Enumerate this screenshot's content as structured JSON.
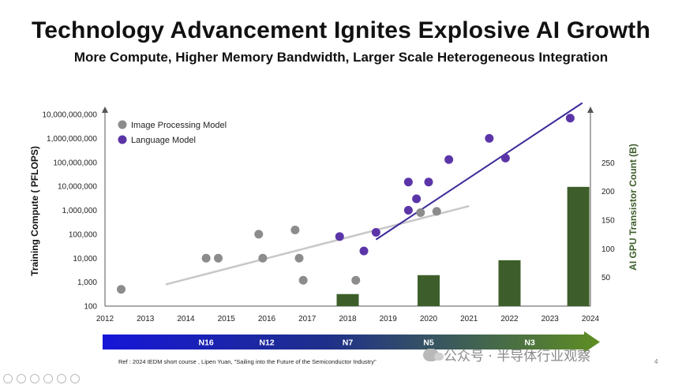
{
  "header": {
    "title": "Technology Advancement Ignites Explosive AI Growth",
    "subtitle": "More Compute, Higher Memory Bandwidth, Larger Scale Heterogeneous Integration"
  },
  "footer": {
    "reference": "Ref : 2024 IEDM short course , Lipen Yuan, \"Sailing into the Future of the Semiconductor Industry\"",
    "page_number": "4",
    "watermark": "公众号 · 半导体行业观察"
  },
  "colors": {
    "image_model": "#8c8c8c",
    "language_model": "#5b35a8",
    "trend_image": "#c8c8c8",
    "trend_language": "#3a2a9a",
    "bar": "#3d5e2a",
    "ylabel_right": "#3d5e2a",
    "arrow_start": "#1616d8",
    "arrow_end": "#5e8e22"
  },
  "chart_data": {
    "type": "scatter",
    "title": "",
    "xlabel": "",
    "ylabel": "Training Compute ( PFLOPS)",
    "ylabel_right": "AI GPU Transistor Count (B)",
    "x_ticks": [
      "2012",
      "2013",
      "2014",
      "2015",
      "2016",
      "2017",
      "2018",
      "2019",
      "2020",
      "2021",
      "2022",
      "2023",
      "2024"
    ],
    "y_log": true,
    "y_ticks": [
      "100",
      "1,000",
      "10,000",
      "100,000",
      "1,000,000",
      "10,000,000",
      "100,000,000",
      "1,000,000,000",
      "10,000,000,000"
    ],
    "y_right_ticks": [
      "50",
      "100",
      "150",
      "200",
      "250"
    ],
    "xlim": [
      2012,
      2024
    ],
    "ylim_log10": [
      2,
      10
    ],
    "ylim_right": [
      0,
      300
    ],
    "legend": {
      "placement": "top-left",
      "entries": [
        "Image Processing Model",
        "Language Model"
      ]
    },
    "series": [
      {
        "name": "Image Processing Model",
        "points": [
          [
            2012.4,
            500
          ],
          [
            2014.5,
            10000
          ],
          [
            2014.8,
            10000
          ],
          [
            2015.8,
            100000
          ],
          [
            2015.9,
            10000
          ],
          [
            2016.7,
            150000
          ],
          [
            2016.8,
            10000
          ],
          [
            2016.9,
            1200
          ],
          [
            2018.2,
            1200
          ],
          [
            2019.8,
            800000
          ],
          [
            2020.2,
            900000
          ]
        ]
      },
      {
        "name": "Language Model",
        "points": [
          [
            2017.8,
            80000
          ],
          [
            2018.4,
            20000
          ],
          [
            2018.7,
            120000
          ],
          [
            2019.5,
            1000000
          ],
          [
            2019.5,
            15000000
          ],
          [
            2019.7,
            3000000
          ],
          [
            2020.0,
            15000000
          ],
          [
            2020.5,
            130000000
          ],
          [
            2021.5,
            1000000000
          ],
          [
            2021.9,
            150000000
          ],
          [
            2023.5,
            7000000000
          ]
        ]
      },
      {
        "name": "AI GPU Transistor Count",
        "bars": [
          {
            "x": 2018.0,
            "value": 21
          },
          {
            "x": 2020.0,
            "value": 54
          },
          {
            "x": 2022.0,
            "value": 80
          },
          {
            "x": 2023.7,
            "value": 208
          }
        ]
      }
    ],
    "trend_lines": [
      {
        "name": "image-trend",
        "from": [
          2013.5,
          800
        ],
        "to": [
          2021.0,
          1500000
        ]
      },
      {
        "name": "language-trend",
        "from": [
          2018.7,
          60000
        ],
        "to": [
          2023.8,
          30000000000
        ]
      }
    ],
    "process_nodes": [
      {
        "label": "N16",
        "x": 2014.5
      },
      {
        "label": "N12",
        "x": 2016.0
      },
      {
        "label": "N7",
        "x": 2018.0
      },
      {
        "label": "N5",
        "x": 2020.0
      },
      {
        "label": "N3",
        "x": 2022.5
      }
    ]
  }
}
